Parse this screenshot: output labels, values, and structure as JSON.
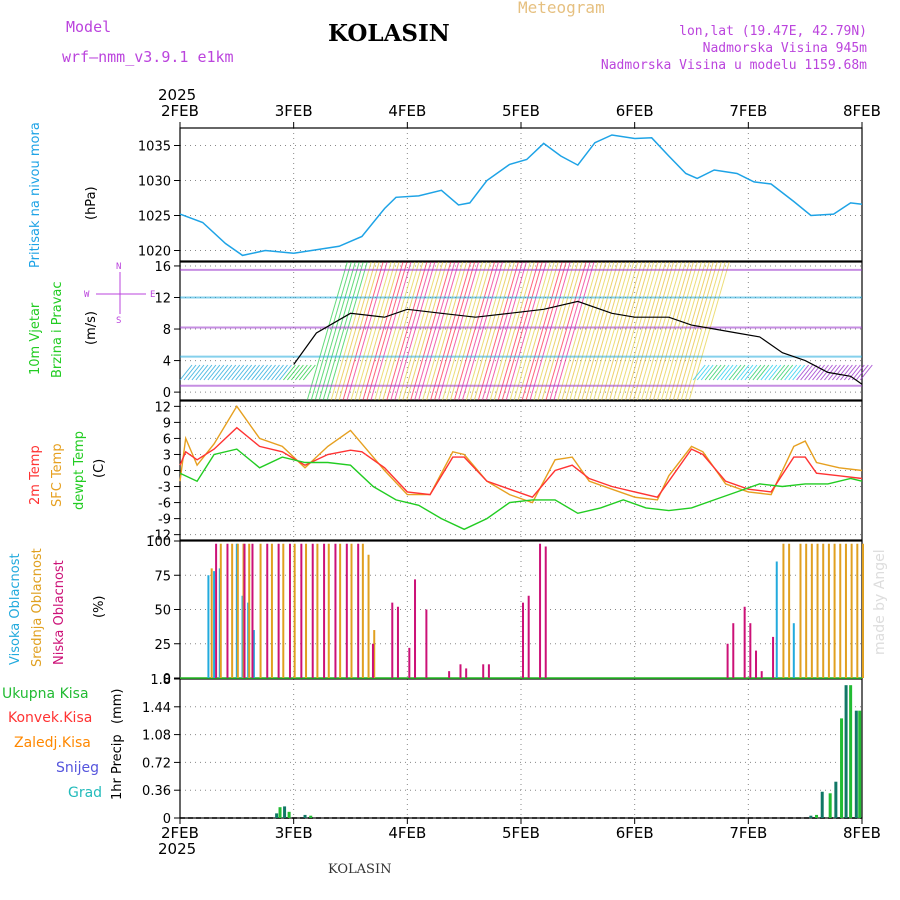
{
  "header": {
    "model_label": "Model",
    "model_value": "wrf–nmm_v3.9.1  e1km",
    "station": "KOLASIN",
    "meteogram_label": "Meteogram",
    "lonlat": "lon,lat (19.47E, 42.79N)",
    "altitude": "Nadmorska Visina 945m",
    "model_altitude": "Nadmorska Visina u modelu 1159.68m",
    "watermark": "made by Angel",
    "footer_station": "KOLASIN"
  },
  "colors": {
    "pressure": "#1ea3e6",
    "temp": "#ff3333",
    "sfc_temp": "#e6a020",
    "dewpoint": "#22cc22",
    "high_cloud": "#22aadd",
    "mid_cloud": "#e0a020",
    "low_cloud": "#cc1177",
    "total_precip": "#22bb33",
    "conv_precip": "#ff3333",
    "frozen_precip": "#ff8800",
    "snow": "#5555dd",
    "hail": "#22bbbb",
    "wind_title": "#22cc22",
    "wind_dir": "#bb44dd"
  },
  "chart_data": [
    {
      "type": "line",
      "title": "Pritisak na nivou mora",
      "ylabel": "(hPa)",
      "ylim": [
        1018.5,
        1037.5
      ],
      "yticks": [
        1020,
        1025,
        1030,
        1035
      ],
      "grid": true,
      "x_top_year": "2025",
      "x_bottom_year": "2025",
      "categories": [
        "2FEB",
        "3FEB",
        "4FEB",
        "5FEB",
        "6FEB",
        "7FEB",
        "8FEB"
      ],
      "series": [
        {
          "x": [
            0,
            0.2,
            0.4,
            0.55,
            0.75,
            1.0,
            1.2,
            1.4,
            1.6,
            1.8,
            1.9,
            2.1,
            2.3,
            2.45,
            2.55,
            2.7,
            2.9,
            3.05,
            3.2,
            3.35,
            3.5,
            3.65,
            3.8,
            4.0,
            4.15,
            4.3,
            4.45,
            4.55,
            4.7,
            4.9,
            5.05,
            5.2,
            5.4,
            5.55,
            5.75,
            5.9,
            6.0
          ],
          "y": [
            1025.2,
            1024.0,
            1021.0,
            1019.3,
            1020.0,
            1019.6,
            1020.1,
            1020.6,
            1022.0,
            1026.0,
            1027.6,
            1027.8,
            1028.6,
            1026.5,
            1026.8,
            1030.0,
            1032.3,
            1033.0,
            1035.3,
            1033.5,
            1032.2,
            1035.4,
            1036.5,
            1036.0,
            1036.1,
            1033.5,
            1031.0,
            1030.3,
            1031.5,
            1031.0,
            1029.8,
            1029.5,
            1027.0,
            1025.0,
            1025.2,
            1026.8,
            1026.6
          ]
        }
      ]
    },
    {
      "type": "line",
      "title": "10m Vjetar Brzina i Pravac",
      "ylabel": "(m/s)",
      "ylim": [
        -1,
        16.5
      ],
      "yticks": [
        0,
        4,
        8,
        12,
        16
      ],
      "grid": true,
      "direction_legend": [
        "N",
        "E",
        "S",
        "W"
      ],
      "series": [
        {
          "name": "Brzina",
          "x": [
            1.0,
            1.2,
            1.5,
            1.8,
            2.0,
            2.3,
            2.6,
            2.9,
            3.2,
            3.5,
            3.8,
            4.0,
            4.3,
            4.5,
            4.7,
            4.9,
            5.1,
            5.3,
            5.5,
            5.7,
            5.9,
            6.0
          ],
          "y": [
            3.5,
            7.5,
            10.0,
            9.5,
            10.5,
            10.0,
            9.5,
            10.0,
            10.5,
            11.5,
            10.0,
            9.5,
            9.5,
            8.5,
            8.0,
            7.5,
            7.0,
            5.0,
            4.0,
            2.5,
            2.0,
            1.0
          ]
        }
      ]
    },
    {
      "type": "line",
      "title": "2m Temp / SFC Temp / dewpt Temp",
      "ylabel": "(C)",
      "ylim": [
        -13,
        13
      ],
      "yticks": [
        -12,
        -9,
        -6,
        -3,
        0,
        3,
        6,
        9,
        12
      ],
      "grid": true,
      "series": [
        {
          "name": "2m Temp",
          "x": [
            0,
            0.05,
            0.15,
            0.3,
            0.5,
            0.7,
            0.9,
            1.1,
            1.3,
            1.5,
            1.6,
            1.8,
            2.0,
            2.2,
            2.4,
            2.5,
            2.7,
            2.9,
            3.1,
            3.3,
            3.45,
            3.6,
            3.8,
            4.0,
            4.2,
            4.3,
            4.5,
            4.6,
            4.8,
            5.0,
            5.2,
            5.4,
            5.5,
            5.6,
            5.8,
            6.0
          ],
          "y": [
            1.0,
            3.5,
            2.0,
            4.0,
            8.0,
            4.5,
            3.5,
            1.0,
            3.0,
            3.8,
            3.5,
            0.5,
            -4.0,
            -4.5,
            2.5,
            2.5,
            -2.0,
            -3.5,
            -5.0,
            0.0,
            1.0,
            -1.5,
            -3.0,
            -4.0,
            -5.0,
            -2.0,
            4.0,
            3.0,
            -2.0,
            -3.5,
            -4.0,
            2.5,
            2.5,
            -0.5,
            -1.0,
            -1.5
          ]
        },
        {
          "name": "SFC Temp",
          "x": [
            0,
            0.05,
            0.15,
            0.3,
            0.5,
            0.7,
            0.9,
            1.1,
            1.3,
            1.5,
            1.6,
            1.8,
            2.0,
            2.2,
            2.4,
            2.5,
            2.7,
            2.9,
            3.1,
            3.3,
            3.45,
            3.6,
            3.8,
            4.0,
            4.2,
            4.3,
            4.5,
            4.6,
            4.8,
            5.0,
            5.2,
            5.4,
            5.5,
            5.6,
            5.8,
            6.0
          ],
          "y": [
            -2.0,
            6.0,
            1.0,
            5.0,
            12.0,
            6.0,
            4.5,
            0.5,
            4.5,
            7.5,
            5.0,
            0.0,
            -4.5,
            -4.5,
            3.5,
            3.0,
            -2.0,
            -4.5,
            -6.0,
            2.0,
            2.5,
            -2.0,
            -3.5,
            -5.0,
            -5.5,
            -1.0,
            4.5,
            3.5,
            -2.5,
            -4.0,
            -4.5,
            4.5,
            5.5,
            1.5,
            0.5,
            0.0
          ]
        },
        {
          "name": "dewpt Temp",
          "x": [
            0,
            0.15,
            0.3,
            0.5,
            0.7,
            0.9,
            1.1,
            1.3,
            1.5,
            1.7,
            1.9,
            2.1,
            2.3,
            2.5,
            2.7,
            2.9,
            3.1,
            3.3,
            3.5,
            3.7,
            3.9,
            4.1,
            4.3,
            4.5,
            4.7,
            4.9,
            5.1,
            5.3,
            5.5,
            5.7,
            5.9,
            6.0
          ],
          "y": [
            -0.5,
            -2.0,
            3.0,
            4.0,
            0.5,
            2.5,
            1.5,
            1.5,
            1.0,
            -3.0,
            -5.5,
            -6.5,
            -9.0,
            -11.0,
            -9.0,
            -6.0,
            -5.5,
            -5.5,
            -8.0,
            -7.0,
            -5.5,
            -7.0,
            -7.5,
            -7.0,
            -5.5,
            -4.0,
            -2.5,
            -3.0,
            -2.5,
            -2.5,
            -1.5,
            -2.0
          ]
        }
      ]
    },
    {
      "type": "bar",
      "title": "Visoka / Srednja / Niska Oblacnost",
      "ylabel": "(%)",
      "ylim": [
        0,
        100
      ],
      "yticks": [
        0,
        25,
        50,
        75,
        100
      ],
      "grid": true,
      "series": [
        {
          "name": "Visoka Oblacnost",
          "x": [
            0.25,
            0.3,
            0.35,
            0.5,
            0.55,
            0.6,
            0.65,
            5.25,
            5.4
          ],
          "values": [
            75,
            78,
            80,
            98,
            60,
            55,
            35,
            85,
            40
          ]
        },
        {
          "name": "Srednja Oblacnost",
          "x": [
            0.27,
            0.35,
            0.45,
            0.5,
            0.55,
            0.6,
            0.7,
            0.8,
            0.9,
            1.0,
            1.1,
            1.2,
            1.3,
            1.4,
            1.5,
            1.6,
            1.65,
            1.7,
            5.3,
            5.35,
            5.45,
            5.5,
            5.55,
            5.6,
            5.65,
            5.7,
            5.75,
            5.8,
            5.85,
            5.9,
            5.95,
            6.0
          ],
          "values": [
            80,
            98,
            98,
            98,
            98,
            98,
            98,
            98,
            98,
            98,
            98,
            98,
            98,
            98,
            98,
            98,
            90,
            35,
            98,
            98,
            98,
            98,
            98,
            98,
            98,
            98,
            98,
            98,
            98,
            98,
            98,
            98
          ]
        },
        {
          "name": "Niska Oblacnost",
          "x": [
            0.3,
            0.4,
            0.55,
            0.62,
            0.75,
            0.85,
            0.95,
            1.05,
            1.15,
            1.25,
            1.35,
            1.45,
            1.55,
            1.68,
            1.85,
            1.9,
            2.0,
            2.05,
            2.15,
            2.35,
            2.45,
            2.5,
            2.65,
            2.7,
            3.0,
            3.05,
            3.15,
            3.2,
            4.8,
            4.85,
            4.95,
            5.0,
            5.05,
            5.1,
            5.2
          ],
          "values": [
            98,
            98,
            98,
            98,
            98,
            98,
            98,
            98,
            98,
            98,
            98,
            98,
            98,
            25,
            55,
            52,
            22,
            72,
            50,
            5,
            10,
            7,
            10,
            10,
            55,
            60,
            98,
            96,
            25,
            40,
            52,
            40,
            20,
            5,
            30
          ]
        }
      ]
    },
    {
      "type": "bar",
      "title": "1hr Precip",
      "ylabel": "(mm)",
      "ylim": [
        0,
        1.8
      ],
      "yticks": [
        0,
        0.36,
        0.72,
        1.08,
        1.44,
        1.8
      ],
      "grid": true,
      "legend": [
        "Ukupna Kisa",
        "Konvek.Kisa",
        "Zaledj.Kisa",
        "Snijeg",
        "Grad"
      ],
      "series": [
        {
          "name": "Ukupna Kisa",
          "x": [
            0.85,
            0.88,
            0.92,
            0.96,
            1.1,
            1.15,
            5.55,
            5.6,
            5.65,
            5.72,
            5.77,
            5.82,
            5.86,
            5.9,
            5.95,
            5.98
          ],
          "values": [
            0.06,
            0.14,
            0.15,
            0.08,
            0.04,
            0.03,
            0.03,
            0.04,
            0.34,
            0.32,
            0.47,
            1.29,
            1.72,
            1.72,
            1.39,
            1.39
          ]
        }
      ]
    }
  ]
}
